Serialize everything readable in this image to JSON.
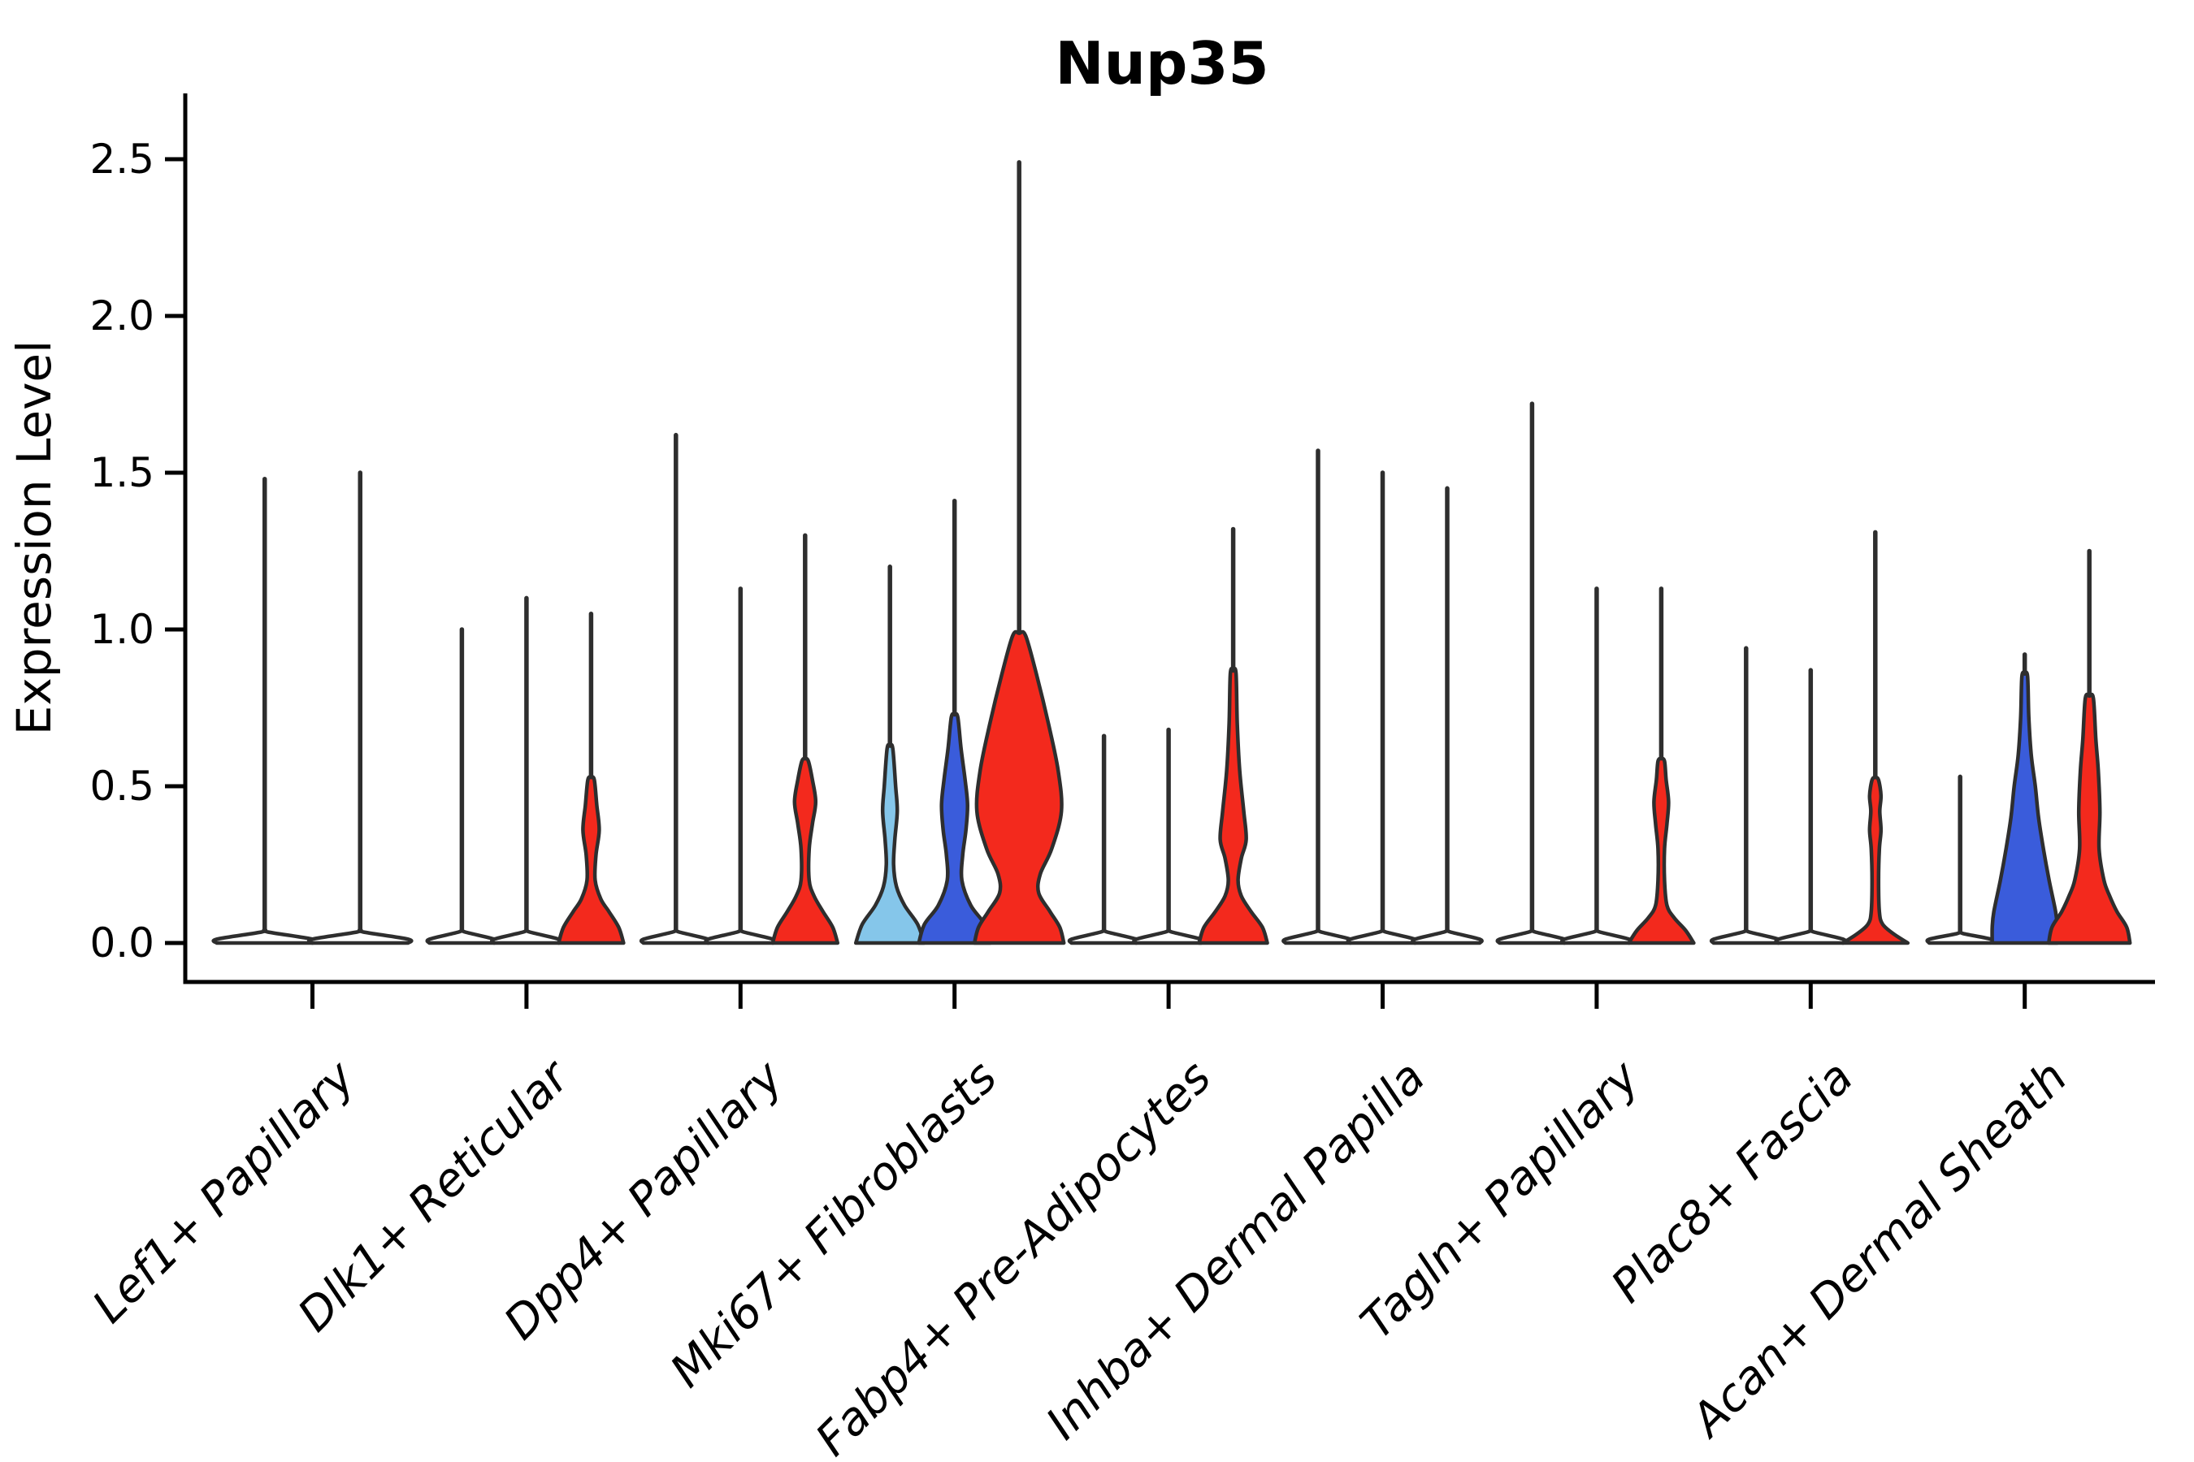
{
  "colors": {
    "red": "#F3291D",
    "blue": "#3A5CDB",
    "lightblue": "#85C6EA",
    "none": "#FFFFFF",
    "outline": "#2E2E2E",
    "axis": "#000000"
  },
  "chart_data": {
    "type": "violin",
    "title": "Nup35",
    "ylabel": "Expression Level",
    "xlabel": "",
    "ylim": [
      0,
      2.5
    ],
    "yticks": [
      "0.0",
      "0.5",
      "1.0",
      "1.5",
      "2.0",
      "2.5"
    ],
    "ytick_values": [
      0,
      0.5,
      1.0,
      1.5,
      2.0,
      2.5
    ],
    "grid": false,
    "legend": false,
    "categories": [
      "Lef1+ Papillary",
      "Dlk1+ Reticular",
      "Dpp4+ Papillary",
      "Mki67+ Fibroblasts",
      "Fabp4+ Pre-Adipocytes",
      "Inhba+ Dermal Papilla",
      "Tagln+ Papillary",
      "Plac8+ Fascia",
      "Acan+ Dermal Sheath"
    ],
    "groups": [
      {
        "category": "Lef1+ Papillary",
        "violins": [
          {
            "color": "none",
            "max": 1.48,
            "body_top": 0.035,
            "profile": [
              [
                0,
                59
              ],
              [
                0.012,
                59
              ],
              [
                0.035,
                4
              ]
            ]
          },
          {
            "color": "none",
            "max": 1.5,
            "body_top": 0.035,
            "profile": [
              [
                0,
                59
              ],
              [
                0.012,
                59
              ],
              [
                0.035,
                4
              ]
            ]
          }
        ]
      },
      {
        "category": "Dlk1+ Reticular",
        "violins": [
          {
            "color": "none",
            "max": 1.0,
            "body_top": 0.035,
            "profile": [
              [
                0,
                40
              ],
              [
                0.012,
                40
              ],
              [
                0.035,
                4
              ]
            ]
          },
          {
            "color": "none",
            "max": 1.1,
            "body_top": 0.035,
            "profile": [
              [
                0,
                40
              ],
              [
                0.012,
                40
              ],
              [
                0.035,
                4
              ]
            ]
          },
          {
            "color": "red",
            "max": 1.05,
            "body_top": 0.52,
            "profile": [
              [
                0,
                40
              ],
              [
                0.05,
                34
              ],
              [
                0.1,
                22
              ],
              [
                0.14,
                12
              ],
              [
                0.2,
                5
              ],
              [
                0.28,
                6
              ],
              [
                0.36,
                10
              ],
              [
                0.44,
                7
              ],
              [
                0.52,
                4
              ]
            ]
          }
        ]
      },
      {
        "category": "Dpp4+ Papillary",
        "violins": [
          {
            "color": "none",
            "max": 1.62,
            "body_top": 0.035,
            "profile": [
              [
                0,
                40
              ],
              [
                0.012,
                40
              ],
              [
                0.035,
                4
              ]
            ]
          },
          {
            "color": "none",
            "max": 1.13,
            "body_top": 0.035,
            "profile": [
              [
                0,
                40
              ],
              [
                0.012,
                40
              ],
              [
                0.035,
                4
              ]
            ]
          },
          {
            "color": "red",
            "max": 1.3,
            "body_top": 0.58,
            "profile": [
              [
                0,
                40
              ],
              [
                0.05,
                34
              ],
              [
                0.1,
                22
              ],
              [
                0.15,
                11
              ],
              [
                0.2,
                5
              ],
              [
                0.3,
                5
              ],
              [
                0.38,
                9
              ],
              [
                0.45,
                13
              ],
              [
                0.52,
                9
              ],
              [
                0.58,
                4
              ]
            ]
          }
        ]
      },
      {
        "category": "Mki67+ Fibroblasts",
        "violins": [
          {
            "color": "lightblue",
            "max": 1.2,
            "body_top": 0.62,
            "profile": [
              [
                0,
                42
              ],
              [
                0.06,
                34
              ],
              [
                0.12,
                18
              ],
              [
                0.18,
                8
              ],
              [
                0.25,
                4.5
              ],
              [
                0.33,
                6
              ],
              [
                0.42,
                9
              ],
              [
                0.5,
                7
              ],
              [
                0.62,
                3.5
              ]
            ]
          },
          {
            "color": "blue",
            "max": 1.41,
            "body_top": 0.72,
            "profile": [
              [
                0,
                44
              ],
              [
                0.06,
                37
              ],
              [
                0.12,
                20
              ],
              [
                0.2,
                9
              ],
              [
                0.28,
                10
              ],
              [
                0.36,
                14
              ],
              [
                0.44,
                16
              ],
              [
                0.52,
                13
              ],
              [
                0.62,
                8
              ],
              [
                0.72,
                4
              ]
            ]
          },
          {
            "color": "red",
            "max": 2.49,
            "body_top": 0.98,
            "profile": [
              [
                0,
                55
              ],
              [
                0.05,
                50
              ],
              [
                0.1,
                38
              ],
              [
                0.16,
                24
              ],
              [
                0.22,
                26
              ],
              [
                0.3,
                40
              ],
              [
                0.42,
                52
              ],
              [
                0.55,
                48
              ],
              [
                0.7,
                36
              ],
              [
                0.85,
                22
              ],
              [
                0.98,
                8
              ]
            ]
          }
        ]
      },
      {
        "category": "Fabp4+ Pre-Adipocytes",
        "violins": [
          {
            "color": "none",
            "max": 0.66,
            "body_top": 0.035,
            "profile": [
              [
                0,
                40
              ],
              [
                0.012,
                40
              ],
              [
                0.035,
                4
              ]
            ]
          },
          {
            "color": "none",
            "max": 0.68,
            "body_top": 0.035,
            "profile": [
              [
                0,
                40
              ],
              [
                0.012,
                40
              ],
              [
                0.035,
                4
              ]
            ]
          },
          {
            "color": "red",
            "max": 1.32,
            "body_top": 0.86,
            "profile": [
              [
                0,
                42
              ],
              [
                0.05,
                36
              ],
              [
                0.1,
                22
              ],
              [
                0.15,
                10
              ],
              [
                0.2,
                6
              ],
              [
                0.27,
                10
              ],
              [
                0.33,
                16
              ],
              [
                0.42,
                13
              ],
              [
                0.55,
                8
              ],
              [
                0.7,
                5
              ],
              [
                0.86,
                3.5
              ]
            ]
          }
        ]
      },
      {
        "category": "Inhba+ Dermal Papilla",
        "violins": [
          {
            "color": "none",
            "max": 1.57,
            "body_top": 0.035,
            "profile": [
              [
                0,
                40
              ],
              [
                0.012,
                40
              ],
              [
                0.035,
                4
              ]
            ]
          },
          {
            "color": "none",
            "max": 1.5,
            "body_top": 0.035,
            "profile": [
              [
                0,
                40
              ],
              [
                0.012,
                40
              ],
              [
                0.035,
                4
              ]
            ]
          },
          {
            "color": "none",
            "max": 1.45,
            "body_top": 0.035,
            "profile": [
              [
                0,
                40
              ],
              [
                0.012,
                40
              ],
              [
                0.035,
                4
              ]
            ]
          }
        ]
      },
      {
        "category": "Tagln+ Papillary",
        "violins": [
          {
            "color": "none",
            "max": 1.72,
            "body_top": 0.035,
            "profile": [
              [
                0,
                40
              ],
              [
                0.012,
                40
              ],
              [
                0.035,
                4
              ]
            ]
          },
          {
            "color": "none",
            "max": 1.13,
            "body_top": 0.035,
            "profile": [
              [
                0,
                40
              ],
              [
                0.012,
                40
              ],
              [
                0.035,
                4
              ]
            ]
          },
          {
            "color": "red",
            "max": 1.13,
            "body_top": 0.58,
            "profile": [
              [
                0,
                40
              ],
              [
                0.04,
                30
              ],
              [
                0.08,
                16
              ],
              [
                0.12,
                7
              ],
              [
                0.2,
                4
              ],
              [
                0.3,
                4
              ],
              [
                0.38,
                7
              ],
              [
                0.45,
                9
              ],
              [
                0.52,
                6
              ],
              [
                0.58,
                4
              ]
            ]
          }
        ]
      },
      {
        "category": "Plac8+ Fascia",
        "violins": [
          {
            "color": "none",
            "max": 0.94,
            "body_top": 0.035,
            "profile": [
              [
                0,
                40
              ],
              [
                0.012,
                40
              ],
              [
                0.035,
                4
              ]
            ]
          },
          {
            "color": "none",
            "max": 0.87,
            "body_top": 0.035,
            "profile": [
              [
                0,
                40
              ],
              [
                0.012,
                40
              ],
              [
                0.035,
                4
              ]
            ]
          },
          {
            "color": "red",
            "max": 1.31,
            "body_top": 0.52,
            "profile": [
              [
                0,
                40
              ],
              [
                0.03,
                22
              ],
              [
                0.06,
                9
              ],
              [
                0.1,
                5
              ],
              [
                0.2,
                4
              ],
              [
                0.3,
                5
              ],
              [
                0.36,
                7
              ],
              [
                0.42,
                5.5
              ],
              [
                0.47,
                7
              ],
              [
                0.52,
                4
              ]
            ]
          }
        ]
      },
      {
        "category": "Acan+ Dermal Sheath",
        "violins": [
          {
            "color": "none",
            "max": 0.53,
            "body_top": 0.03,
            "profile": [
              [
                0,
                38
              ],
              [
                0.012,
                38
              ],
              [
                0.03,
                4
              ]
            ]
          },
          {
            "color": "blue",
            "max": 0.92,
            "body_top": 0.85,
            "profile": [
              [
                0,
                40
              ],
              [
                0.05,
                40
              ],
              [
                0.1,
                38
              ],
              [
                0.2,
                30
              ],
              [
                0.3,
                23
              ],
              [
                0.4,
                17
              ],
              [
                0.5,
                13
              ],
              [
                0.6,
                8
              ],
              [
                0.72,
                5
              ],
              [
                0.85,
                3.5
              ]
            ]
          },
          {
            "color": "red",
            "max": 1.25,
            "body_top": 0.78,
            "profile": [
              [
                0,
                50
              ],
              [
                0.05,
                46
              ],
              [
                0.1,
                34
              ],
              [
                0.15,
                25
              ],
              [
                0.2,
                18
              ],
              [
                0.3,
                12
              ],
              [
                0.42,
                13
              ],
              [
                0.55,
                11
              ],
              [
                0.65,
                8
              ],
              [
                0.78,
                5
              ]
            ]
          }
        ]
      }
    ]
  }
}
